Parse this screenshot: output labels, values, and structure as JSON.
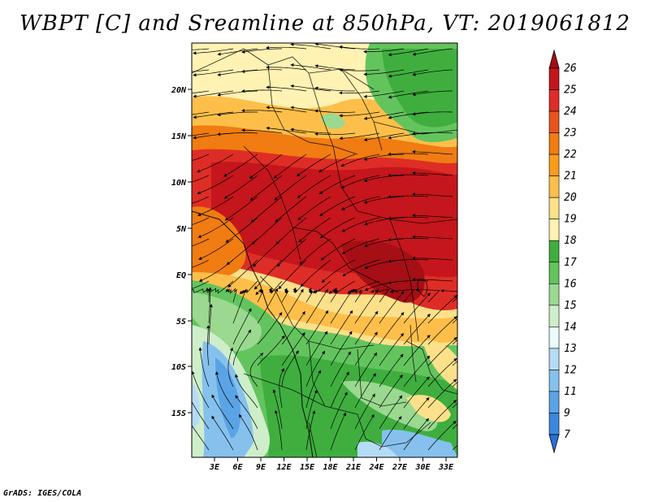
{
  "title": "WBPT [C] and Sreamline at 850hPa, VT: 2019061812",
  "credit": "GrADS: IGES/COLA",
  "map": {
    "lat_ticks": [
      "20N",
      "15N",
      "10N",
      "5N",
      "EQ",
      "5S",
      "10S",
      "15S"
    ],
    "lon_ticks": [
      "3E",
      "6E",
      "9E",
      "12E",
      "15E",
      "18E",
      "21E",
      "24E",
      "27E",
      "30E",
      "33E"
    ]
  },
  "colorbar": {
    "labels": [
      "26",
      "25",
      "24",
      "23",
      "22",
      "21",
      "20",
      "19",
      "18",
      "17",
      "16",
      "15",
      "14",
      "13",
      "12",
      "11",
      "9",
      "7"
    ],
    "colors": [
      "#a50f15",
      "#c4161c",
      "#de2d26",
      "#e8541c",
      "#f07c12",
      "#f99c1c",
      "#fdbf4a",
      "#fde08a",
      "#fff2b3",
      "#3fae3f",
      "#63c45e",
      "#9ad98f",
      "#cdeec9",
      "#eafbfb",
      "#b5dcf5",
      "#86c1ee",
      "#5aa4e6",
      "#3d87de",
      "#2a6fd6"
    ]
  }
}
